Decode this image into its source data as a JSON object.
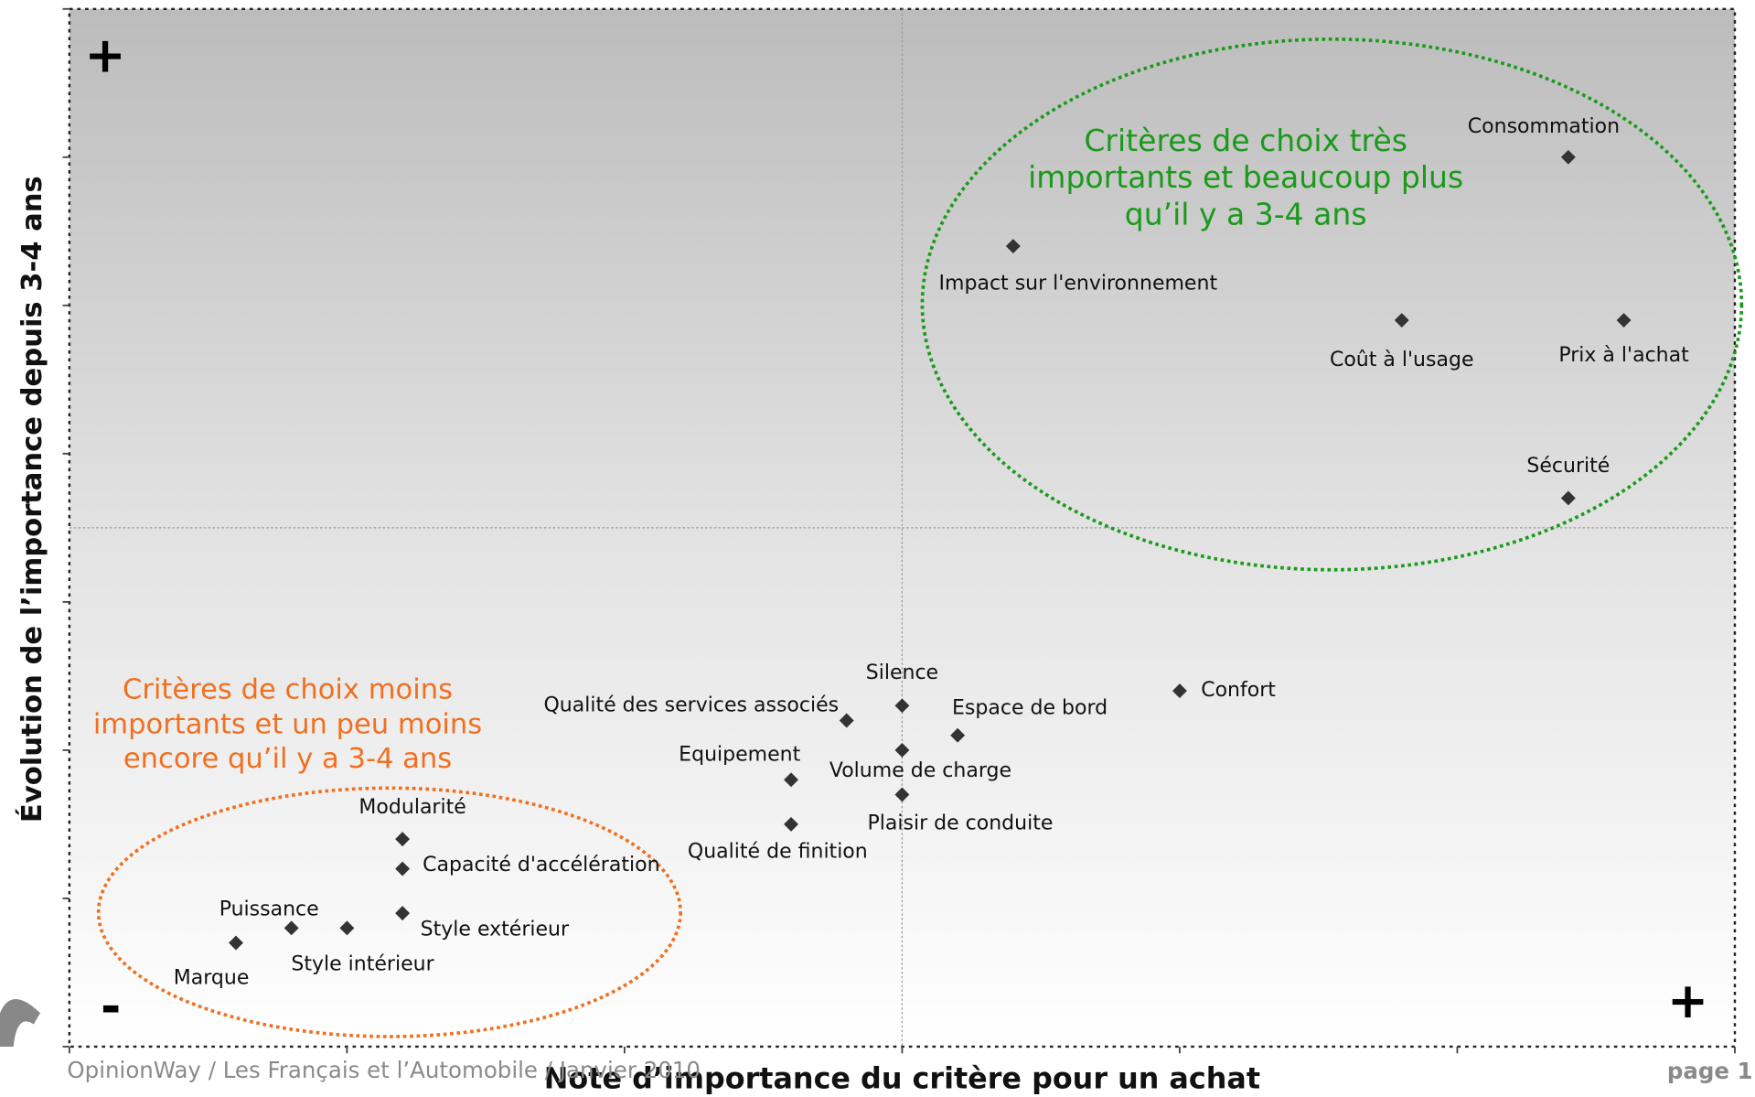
{
  "chart_data": {
    "type": "scatter",
    "xlabel": "Note d’importance du critère pour un achat",
    "ylabel": "Évolution de l’importance depuis 3-4 ans",
    "xlim": [
      0,
      6
    ],
    "ylim": [
      0,
      7
    ],
    "xticks": [
      0,
      1,
      2,
      3,
      4,
      5,
      6
    ],
    "yticks": [
      0,
      1,
      2,
      3,
      4,
      5,
      6,
      7
    ],
    "color": "#333333",
    "categories": [
      "Consommation",
      "Impact sur l'environnement",
      "Coût à l'usage",
      "Prix à l'achat",
      "Sécurité",
      "Confort",
      "Silence",
      "Qualité des services associés",
      "Espace de bord",
      "Volume de charge",
      "Equipement",
      "Plaisir de conduite",
      "Qualité de finition",
      "Modularité",
      "Capacité d'accélération",
      "Style extérieur",
      "Style intérieur",
      "Puissance",
      "Marque"
    ],
    "x": [
      5.4,
      3.4,
      4.8,
      5.6,
      5.4,
      4.0,
      3.0,
      2.8,
      3.2,
      3.0,
      2.6,
      3.0,
      2.6,
      1.2,
      1.2,
      1.2,
      1.0,
      0.8,
      0.6
    ],
    "values": [
      6.0,
      5.4,
      4.9,
      4.9,
      3.7,
      2.4,
      2.3,
      2.2,
      2.1,
      2.0,
      1.8,
      1.7,
      1.5,
      1.4,
      1.2,
      0.9,
      0.8,
      0.8,
      0.7
    ],
    "annotations": {
      "high_group": [
        "Critères de choix très",
        "importants et beaucoup plus",
        "qu’il y a 3-4 ans"
      ],
      "low_group": [
        "Critères de choix moins",
        "importants et un peu moins",
        "encore qu’il y a 3-4 ans"
      ],
      "plus_top": "+",
      "minus_bottom": "-",
      "plus_right": "+"
    }
  },
  "footer": {
    "source": "OpinionWay /  Les Français et l’Automobile / Janvier 2010",
    "page": "page 1"
  }
}
